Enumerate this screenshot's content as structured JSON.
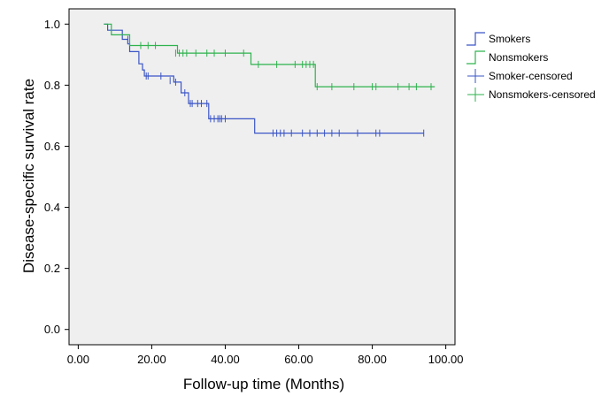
{
  "chart_data": {
    "type": "line",
    "title": "",
    "xlabel": "Follow-up time (Months)",
    "ylabel": "Disease-specific survival rate",
    "xlim": [
      -2.5,
      102.5
    ],
    "ylim": [
      -0.05,
      1.05
    ],
    "x_ticks": [
      0,
      20,
      40,
      60,
      80,
      100
    ],
    "x_tick_labels": [
      "0.00",
      "20.00",
      "40.00",
      "60.00",
      "80.00",
      "100.00"
    ],
    "y_ticks": [
      0.0,
      0.2,
      0.4,
      0.6,
      0.8,
      1.0
    ],
    "y_tick_labels": [
      "0.0",
      "0.2",
      "0.4",
      "0.6",
      "0.8",
      "1.0"
    ],
    "grid": false,
    "legend_position": "right",
    "series": [
      {
        "name": "Smokers",
        "color": "#3a55c6",
        "style": "step",
        "steps": [
          [
            7,
            1.0
          ],
          [
            8,
            0.98
          ],
          [
            12,
            0.95
          ],
          [
            13.5,
            0.935
          ],
          [
            14,
            0.91
          ],
          [
            16.5,
            0.87
          ],
          [
            17.5,
            0.85
          ],
          [
            18,
            0.83
          ],
          [
            26,
            0.81
          ],
          [
            28,
            0.775
          ],
          [
            30,
            0.74
          ],
          [
            35.5,
            0.69
          ],
          [
            48,
            0.643
          ],
          [
            94,
            0.643
          ]
        ]
      },
      {
        "name": "Nonsmokers",
        "color": "#2eb34e",
        "style": "step",
        "steps": [
          [
            7,
            1.0
          ],
          [
            9,
            0.965
          ],
          [
            14,
            0.93
          ],
          [
            27,
            0.905
          ],
          [
            47,
            0.868
          ],
          [
            64.5,
            0.795
          ],
          [
            97,
            0.795
          ]
        ]
      }
    ],
    "censored": [
      {
        "name": "Smoker-censored",
        "color": "#3a55c6",
        "marker": "+",
        "points": [
          [
            13.5,
            0.95
          ],
          [
            18.5,
            0.83
          ],
          [
            19,
            0.83
          ],
          [
            22.5,
            0.83
          ],
          [
            25,
            0.815
          ],
          [
            26.5,
            0.81
          ],
          [
            29,
            0.775
          ],
          [
            30.5,
            0.74
          ],
          [
            31,
            0.74
          ],
          [
            32.5,
            0.74
          ],
          [
            33.5,
            0.74
          ],
          [
            35,
            0.74
          ],
          [
            36,
            0.69
          ],
          [
            37,
            0.69
          ],
          [
            38,
            0.69
          ],
          [
            38.5,
            0.69
          ],
          [
            39,
            0.69
          ],
          [
            40,
            0.69
          ],
          [
            53,
            0.643
          ],
          [
            54,
            0.643
          ],
          [
            55,
            0.643
          ],
          [
            56,
            0.643
          ],
          [
            58,
            0.643
          ],
          [
            61,
            0.643
          ],
          [
            63,
            0.643
          ],
          [
            65,
            0.643
          ],
          [
            67,
            0.643
          ],
          [
            69,
            0.643
          ],
          [
            71,
            0.643
          ],
          [
            76,
            0.643
          ],
          [
            81,
            0.643
          ],
          [
            82,
            0.643
          ],
          [
            94,
            0.643
          ]
        ]
      },
      {
        "name": "Nonsmokers-censored",
        "color": "#2eb34e",
        "marker": "+",
        "points": [
          [
            17,
            0.93
          ],
          [
            19,
            0.93
          ],
          [
            21,
            0.93
          ],
          [
            26.5,
            0.905
          ],
          [
            27.5,
            0.905
          ],
          [
            28.5,
            0.905
          ],
          [
            29.5,
            0.905
          ],
          [
            32,
            0.905
          ],
          [
            35,
            0.905
          ],
          [
            37,
            0.905
          ],
          [
            40,
            0.905
          ],
          [
            45,
            0.905
          ],
          [
            49,
            0.868
          ],
          [
            54,
            0.868
          ],
          [
            59,
            0.868
          ],
          [
            61,
            0.868
          ],
          [
            62,
            0.868
          ],
          [
            63,
            0.868
          ],
          [
            64,
            0.868
          ],
          [
            65,
            0.795
          ],
          [
            69,
            0.795
          ],
          [
            75,
            0.795
          ],
          [
            80,
            0.795
          ],
          [
            81,
            0.795
          ],
          [
            87,
            0.795
          ],
          [
            90,
            0.795
          ],
          [
            92,
            0.795
          ],
          [
            96,
            0.795
          ]
        ]
      }
    ],
    "legend": [
      {
        "label": "Smokers",
        "color": "#3a55c6",
        "symbol": "step"
      },
      {
        "label": "Nonsmokers",
        "color": "#2eb34e",
        "symbol": "step"
      },
      {
        "label": "Smoker-censored",
        "color": "#3a55c6",
        "symbol": "plus"
      },
      {
        "label": "Nonsmokers-censored",
        "color": "#2eb34e",
        "symbol": "plus"
      }
    ]
  },
  "colors": {
    "plot_background": "#efefef",
    "plot_border": "#000000",
    "smokers": "#3a55c6",
    "nonsmokers": "#2eb34e"
  }
}
